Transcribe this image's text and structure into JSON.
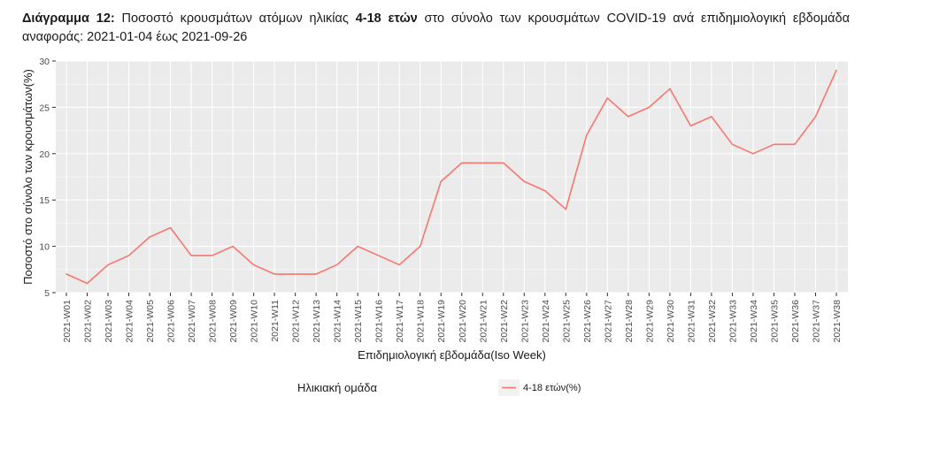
{
  "caption": {
    "label": "Διάγραμμα 12",
    "sep": ":",
    "text_before": "Ποσοστό κρουσμάτων ατόμων ηλικίας ",
    "highlight": "4-18 ετών",
    "text_after": " στο σύνολο των κρουσμάτων COVID-19 ανά επιδημιολογική εβδομάδα αναφοράς: 2021-01-04 έως 2021-09-26"
  },
  "chart_data": {
    "type": "line",
    "xlabel": "Επιδημιολογική εβδομάδα(Iso Week)",
    "ylabel": "Ποσοστό στο σύνολο των κρουσμάτων(%)",
    "ylim": [
      5,
      30
    ],
    "yticks": [
      5,
      10,
      15,
      20,
      25,
      30
    ],
    "grid": true,
    "legend_position": "bottom",
    "legend_title": "Ηλικιακή ομάδα",
    "categories": [
      "2021-W01",
      "2021-W02",
      "2021-W03",
      "2021-W04",
      "2021-W05",
      "2021-W06",
      "2021-W07",
      "2021-W08",
      "2021-W09",
      "2021-W10",
      "2021-W11",
      "2021-W12",
      "2021-W13",
      "2021-W14",
      "2021-W15",
      "2021-W16",
      "2021-W17",
      "2021-W18",
      "2021-W19",
      "2021-W20",
      "2021-W21",
      "2021-W22",
      "2021-W23",
      "2021-W24",
      "2021-W25",
      "2021-W26",
      "2021-W27",
      "2021-W28",
      "2021-W29",
      "2021-W30",
      "2021-W31",
      "2021-W32",
      "2021-W33",
      "2021-W34",
      "2021-W35",
      "2021-W36",
      "2021-W37",
      "2021-W38"
    ],
    "series": [
      {
        "name": "4-18 ετών(%)",
        "color": "#F8766D",
        "values": [
          7,
          6,
          8,
          9,
          11,
          12,
          9,
          9,
          10,
          8,
          7,
          7,
          7,
          8,
          10,
          9,
          8,
          10,
          17,
          19,
          19,
          19,
          17,
          16,
          14,
          22,
          26,
          24,
          25,
          27,
          23,
          24,
          21,
          20,
          21,
          21,
          24,
          29
        ]
      }
    ],
    "panel_color": "#ebebeb",
    "grid_color": "#ffffff"
  }
}
